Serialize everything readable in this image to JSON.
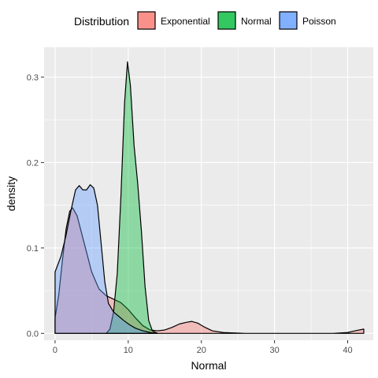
{
  "chart_data": {
    "type": "area",
    "title": "",
    "xlabel": "Normal",
    "ylabel": "density",
    "xlim": [
      -1.5,
      43.5
    ],
    "ylim": [
      -0.008,
      0.335
    ],
    "x_ticks": [
      0,
      10,
      20,
      30,
      40
    ],
    "x_tick_labels": [
      "0",
      "10",
      "20",
      "30",
      "40"
    ],
    "y_ticks": [
      0.0,
      0.1,
      0.2,
      0.3
    ],
    "y_tick_labels": [
      "0.0",
      "0.1",
      "0.2",
      "0.3"
    ],
    "grid": true,
    "legend": {
      "title": "Distribution",
      "position": "top"
    },
    "series": [
      {
        "name": "Exponential",
        "color": "#F8766D",
        "points": [
          [
            0,
            0.018
          ],
          [
            0.5,
            0.045
          ],
          [
            1,
            0.085
          ],
          [
            1.5,
            0.122
          ],
          [
            2,
            0.143
          ],
          [
            2.4,
            0.147
          ],
          [
            3,
            0.138
          ],
          [
            4,
            0.105
          ],
          [
            5,
            0.072
          ],
          [
            6,
            0.052
          ],
          [
            7,
            0.044
          ],
          [
            8,
            0.04
          ],
          [
            9,
            0.036
          ],
          [
            10,
            0.028
          ],
          [
            11,
            0.018
          ],
          [
            12,
            0.009
          ],
          [
            13,
            0.004
          ],
          [
            14,
            0.003
          ],
          [
            15,
            0.004
          ],
          [
            16,
            0.007
          ],
          [
            17,
            0.011
          ],
          [
            18,
            0.013
          ],
          [
            18.7,
            0.014
          ],
          [
            19.5,
            0.012
          ],
          [
            20.5,
            0.007
          ],
          [
            21.5,
            0.003
          ],
          [
            23,
            0.001
          ],
          [
            26,
            0.0
          ],
          [
            30,
            0.0
          ],
          [
            35,
            0.0
          ],
          [
            38,
            0.0
          ],
          [
            40,
            0.001
          ],
          [
            41,
            0.003
          ],
          [
            42.2,
            0.005
          ]
        ]
      },
      {
        "name": "Normal",
        "color": "#00BA38",
        "points": [
          [
            7,
            0.0
          ],
          [
            7.5,
            0.005
          ],
          [
            8,
            0.025
          ],
          [
            8.5,
            0.07
          ],
          [
            9,
            0.16
          ],
          [
            9.5,
            0.27
          ],
          [
            9.9,
            0.318
          ],
          [
            10.3,
            0.29
          ],
          [
            10.8,
            0.22
          ],
          [
            11.3,
            0.175
          ],
          [
            11.8,
            0.12
          ],
          [
            12.3,
            0.055
          ],
          [
            12.8,
            0.015
          ],
          [
            13.3,
            0.003
          ],
          [
            14,
            0.0
          ]
        ]
      },
      {
        "name": "Poisson",
        "color": "#619CFF",
        "points": [
          [
            0,
            0.072
          ],
          [
            0.8,
            0.09
          ],
          [
            1.5,
            0.115
          ],
          [
            2.2,
            0.145
          ],
          [
            2.8,
            0.168
          ],
          [
            3.3,
            0.173
          ],
          [
            3.8,
            0.168
          ],
          [
            4.3,
            0.168
          ],
          [
            4.8,
            0.174
          ],
          [
            5.3,
            0.17
          ],
          [
            5.8,
            0.15
          ],
          [
            6.3,
            0.105
          ],
          [
            6.8,
            0.06
          ],
          [
            7.3,
            0.035
          ],
          [
            8,
            0.025
          ],
          [
            8.7,
            0.02
          ],
          [
            9.4,
            0.015
          ],
          [
            10.2,
            0.01
          ],
          [
            11,
            0.006
          ],
          [
            12,
            0.003
          ],
          [
            13,
            0.001
          ],
          [
            14,
            0.0
          ]
        ]
      }
    ]
  }
}
